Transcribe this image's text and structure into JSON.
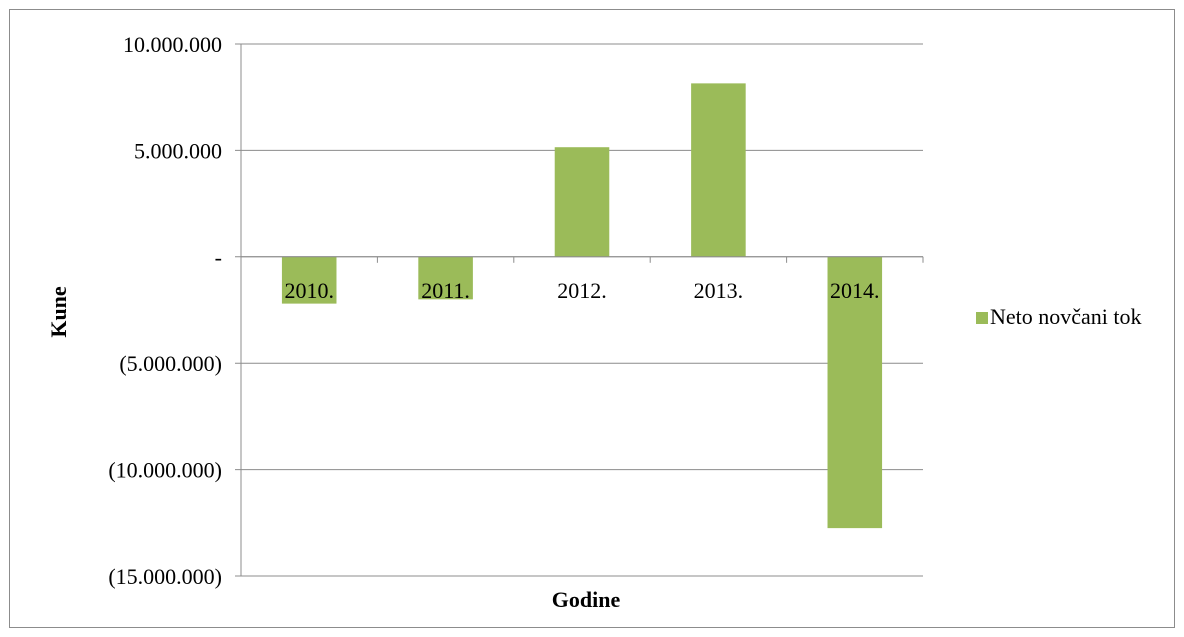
{
  "chart_data": {
    "type": "bar",
    "title": "",
    "xlabel": "Godine",
    "ylabel": "Kune",
    "categories": [
      "2010.",
      "2011.",
      "2012.",
      "2013.",
      "2014."
    ],
    "series": [
      {
        "name": "Neto novčani tok",
        "color": "#9bbb59",
        "values": [
          -2200000,
          -2000000,
          5150000,
          8150000,
          -12750000
        ]
      }
    ],
    "ylim": [
      -15000000,
      10000000
    ],
    "yticks": [
      10000000,
      5000000,
      0,
      -5000000,
      -10000000,
      -15000000
    ],
    "ytick_labels": [
      "10.000.000",
      "5.000.000",
      "-",
      "(5.000.000)",
      "(10.000.000)",
      "(15.000.000)"
    ],
    "grid": true,
    "legend_position": "right"
  }
}
